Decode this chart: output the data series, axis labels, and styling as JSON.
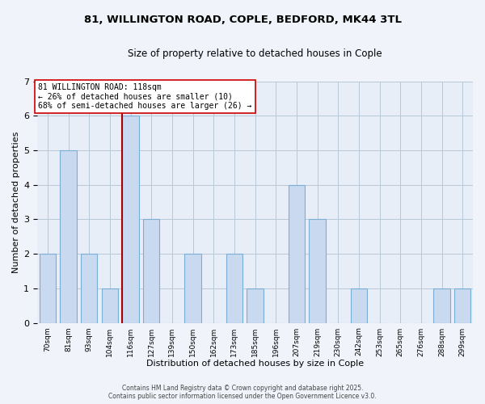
{
  "title_line1": "81, WILLINGTON ROAD, COPLE, BEDFORD, MK44 3TL",
  "title_line2": "Size of property relative to detached houses in Cople",
  "xlabel": "Distribution of detached houses by size in Cople",
  "ylabel": "Number of detached properties",
  "categories": [
    "70sqm",
    "81sqm",
    "93sqm",
    "104sqm",
    "116sqm",
    "127sqm",
    "139sqm",
    "150sqm",
    "162sqm",
    "173sqm",
    "185sqm",
    "196sqm",
    "207sqm",
    "219sqm",
    "230sqm",
    "242sqm",
    "253sqm",
    "265sqm",
    "276sqm",
    "288sqm",
    "299sqm"
  ],
  "values": [
    2,
    5,
    2,
    1,
    6,
    3,
    0,
    2,
    0,
    2,
    1,
    0,
    4,
    3,
    0,
    1,
    0,
    0,
    0,
    1,
    1
  ],
  "highlight_index": 4,
  "bar_color": "#c8d9f0",
  "bar_edge_color": "#7aafd4",
  "highlight_vline_color": "#aa0000",
  "ylim": [
    0,
    7
  ],
  "yticks": [
    0,
    1,
    2,
    3,
    4,
    5,
    6,
    7
  ],
  "annotation_text": "81 WILLINGTON ROAD: 118sqm\n← 26% of detached houses are smaller (10)\n68% of semi-detached houses are larger (26) →",
  "footer_line1": "Contains HM Land Registry data © Crown copyright and database right 2025.",
  "footer_line2": "Contains public sector information licensed under the Open Government Licence v3.0.",
  "background_color": "#f0f4fa",
  "plot_bg_color": "#e8eef8",
  "grid_color": "#b8c8d8",
  "bar_width": 0.8
}
